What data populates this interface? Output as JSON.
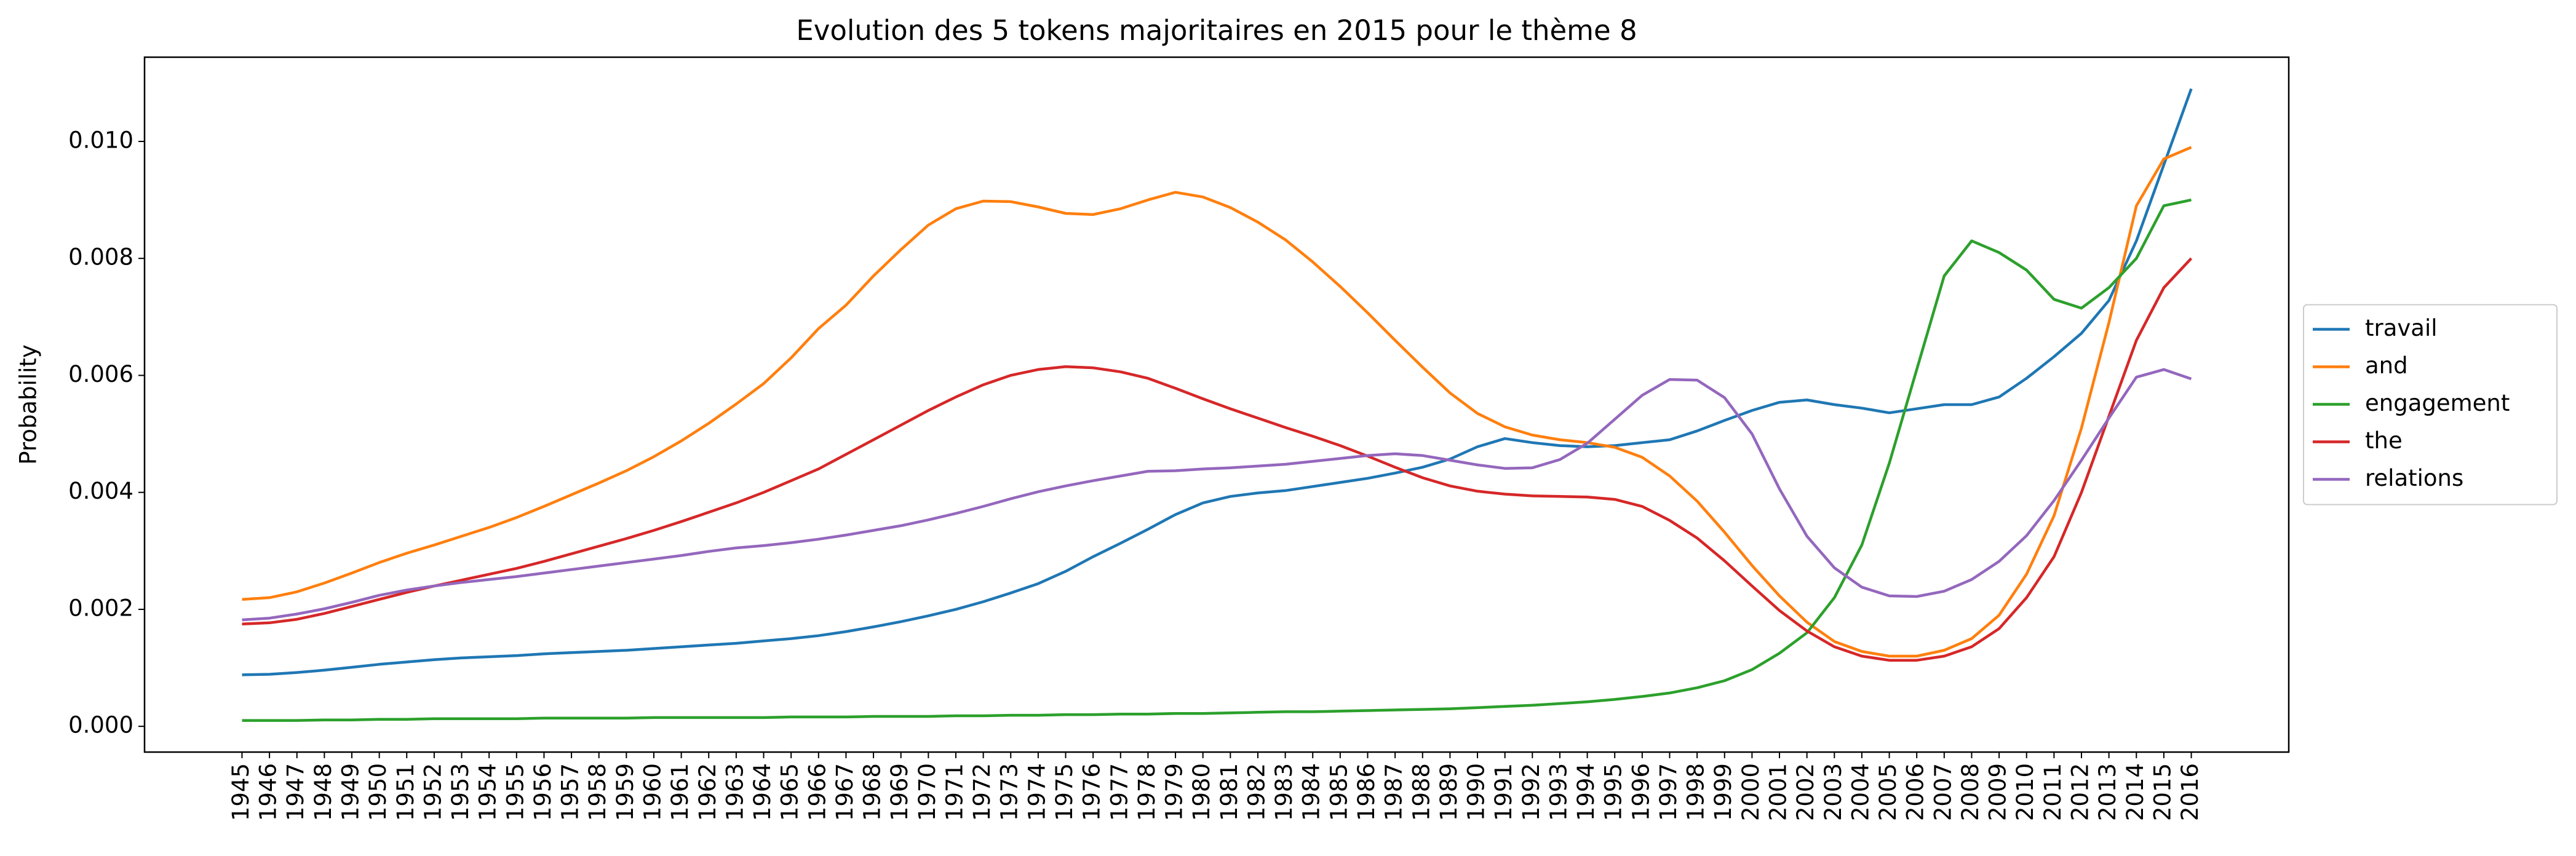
{
  "chart_data": {
    "type": "line",
    "title": "Evolution des 5 tokens majoritaires en 2015 pour le thème 8",
    "ylabel": "Probability",
    "categories": [
      "1945",
      "1946",
      "1947",
      "1948",
      "1949",
      "1950",
      "1951",
      "1952",
      "1953",
      "1954",
      "1955",
      "1956",
      "1957",
      "1958",
      "1959",
      "1960",
      "1961",
      "1962",
      "1963",
      "1964",
      "1965",
      "1966",
      "1967",
      "1968",
      "1969",
      "1970",
      "1971",
      "1972",
      "1973",
      "1974",
      "1975",
      "1976",
      "1977",
      "1978",
      "1979",
      "1980",
      "1981",
      "1982",
      "1983",
      "1984",
      "1985",
      "1986",
      "1987",
      "1988",
      "1989",
      "1990",
      "1991",
      "1992",
      "1993",
      "1994",
      "1995",
      "1996",
      "1997",
      "1998",
      "1999",
      "2000",
      "2001",
      "2002",
      "2003",
      "2004",
      "2005",
      "2006",
      "2007",
      "2008",
      "2009",
      "2010",
      "2011",
      "2012",
      "2013",
      "2014",
      "2015",
      "2016"
    ],
    "series": [
      {
        "name": "travail",
        "color": "#1f77b4",
        "values": [
          0.00088,
          0.00089,
          0.00092,
          0.00096,
          0.00101,
          0.00106,
          0.0011,
          0.00114,
          0.00117,
          0.00119,
          0.00121,
          0.00124,
          0.00126,
          0.00128,
          0.0013,
          0.00133,
          0.00136,
          0.00139,
          0.00142,
          0.00146,
          0.0015,
          0.00155,
          0.00162,
          0.0017,
          0.00179,
          0.00189,
          0.002,
          0.00213,
          0.00228,
          0.00244,
          0.00265,
          0.0029,
          0.00313,
          0.00337,
          0.00362,
          0.00382,
          0.00393,
          0.00399,
          0.00403,
          0.0041,
          0.00417,
          0.00424,
          0.00433,
          0.00443,
          0.00457,
          0.00478,
          0.00492,
          0.00485,
          0.0048,
          0.00478,
          0.0048,
          0.00485,
          0.0049,
          0.00505,
          0.00523,
          0.0054,
          0.00554,
          0.00558,
          0.0055,
          0.00544,
          0.00536,
          0.00543,
          0.0055,
          0.0055,
          0.00563,
          0.00595,
          0.00632,
          0.00672,
          0.00728,
          0.0083,
          0.0096,
          0.0109
        ]
      },
      {
        "name": "and",
        "color": "#ff7f0e",
        "values": [
          0.00217,
          0.0022,
          0.0023,
          0.00245,
          0.00262,
          0.0028,
          0.00296,
          0.0031,
          0.00325,
          0.0034,
          0.00357,
          0.00376,
          0.00396,
          0.00416,
          0.00437,
          0.00461,
          0.00488,
          0.00518,
          0.00551,
          0.00586,
          0.0063,
          0.0068,
          0.0072,
          0.0077,
          0.00815,
          0.00857,
          0.00885,
          0.00898,
          0.00897,
          0.00888,
          0.00877,
          0.00875,
          0.00885,
          0.009,
          0.00913,
          0.00905,
          0.00887,
          0.00862,
          0.00832,
          0.00794,
          0.00752,
          0.00707,
          0.0066,
          0.00614,
          0.0057,
          0.00535,
          0.00512,
          0.00498,
          0.0049,
          0.00485,
          0.00477,
          0.0046,
          0.00428,
          0.00385,
          0.00332,
          0.00275,
          0.00223,
          0.00178,
          0.00145,
          0.00128,
          0.0012,
          0.0012,
          0.0013,
          0.0015,
          0.0019,
          0.0026,
          0.0036,
          0.0051,
          0.0069,
          0.0089,
          0.0097,
          0.0099
        ]
      },
      {
        "name": "engagement",
        "color": "#2ca02c",
        "values": [
          0.0001,
          0.0001,
          0.0001,
          0.00011,
          0.00011,
          0.00012,
          0.00012,
          0.00013,
          0.00013,
          0.00013,
          0.00013,
          0.00014,
          0.00014,
          0.00014,
          0.00014,
          0.00015,
          0.00015,
          0.00015,
          0.00015,
          0.00015,
          0.00016,
          0.00016,
          0.00016,
          0.00017,
          0.00017,
          0.00017,
          0.00018,
          0.00018,
          0.00019,
          0.00019,
          0.0002,
          0.0002,
          0.00021,
          0.00021,
          0.00022,
          0.00022,
          0.00023,
          0.00024,
          0.00025,
          0.00025,
          0.00026,
          0.00027,
          0.00028,
          0.00029,
          0.0003,
          0.00032,
          0.00034,
          0.00036,
          0.00039,
          0.00042,
          0.00046,
          0.00051,
          0.00057,
          0.00066,
          0.00078,
          0.00097,
          0.00125,
          0.0016,
          0.0022,
          0.0031,
          0.0045,
          0.0061,
          0.0077,
          0.0083,
          0.0081,
          0.0078,
          0.0073,
          0.00715,
          0.0075,
          0.008,
          0.0089,
          0.009
        ]
      },
      {
        "name": "the",
        "color": "#d62728",
        "values": [
          0.00175,
          0.00177,
          0.00183,
          0.00193,
          0.00205,
          0.00217,
          0.00229,
          0.0024,
          0.0025,
          0.0026,
          0.0027,
          0.00282,
          0.00295,
          0.00308,
          0.00321,
          0.00335,
          0.0035,
          0.00366,
          0.00382,
          0.004,
          0.0042,
          0.0044,
          0.00465,
          0.0049,
          0.00515,
          0.0054,
          0.00563,
          0.00584,
          0.006,
          0.0061,
          0.00615,
          0.00613,
          0.00606,
          0.00595,
          0.00578,
          0.0056,
          0.00543,
          0.00527,
          0.00511,
          0.00496,
          0.0048,
          0.00462,
          0.00443,
          0.00425,
          0.00411,
          0.00402,
          0.00397,
          0.00394,
          0.00393,
          0.00392,
          0.00388,
          0.00376,
          0.00352,
          0.00322,
          0.00283,
          0.0024,
          0.00198,
          0.00163,
          0.00136,
          0.0012,
          0.00113,
          0.00113,
          0.0012,
          0.00136,
          0.00167,
          0.0022,
          0.0029,
          0.004,
          0.0053,
          0.0066,
          0.0075,
          0.008
        ]
      },
      {
        "name": "relations",
        "color": "#9467bd",
        "values": [
          0.00182,
          0.00185,
          0.00192,
          0.00201,
          0.00212,
          0.00224,
          0.00233,
          0.0024,
          0.00246,
          0.00251,
          0.00256,
          0.00262,
          0.00268,
          0.00274,
          0.0028,
          0.00286,
          0.00292,
          0.00299,
          0.00305,
          0.00309,
          0.00314,
          0.0032,
          0.00327,
          0.00335,
          0.00343,
          0.00353,
          0.00364,
          0.00376,
          0.00389,
          0.00401,
          0.00411,
          0.0042,
          0.00428,
          0.00436,
          0.00437,
          0.0044,
          0.00442,
          0.00445,
          0.00448,
          0.00453,
          0.00458,
          0.00463,
          0.00466,
          0.00463,
          0.00455,
          0.00447,
          0.00441,
          0.00442,
          0.00456,
          0.00484,
          0.00525,
          0.00566,
          0.00593,
          0.00592,
          0.00562,
          0.005,
          0.00406,
          0.00325,
          0.00271,
          0.00238,
          0.00223,
          0.00222,
          0.00231,
          0.00251,
          0.00282,
          0.00326,
          0.00386,
          0.00455,
          0.00527,
          0.00597,
          0.0061,
          0.00594
        ]
      }
    ],
    "ylim": [
      -0.00044,
      0.01144
    ],
    "yticks": [
      {
        "value": 0,
        "label": "0.000"
      },
      {
        "value": 0.002,
        "label": "0.002"
      },
      {
        "value": 0.004,
        "label": "0.004"
      },
      {
        "value": 0.006,
        "label": "0.006"
      },
      {
        "value": 0.008,
        "label": "0.008"
      },
      {
        "value": 0.01,
        "label": "0.010"
      }
    ],
    "grid": false,
    "legend": "right"
  }
}
